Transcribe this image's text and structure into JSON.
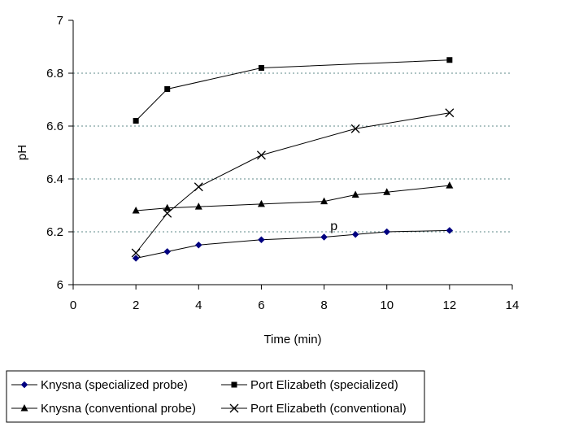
{
  "chart_data": {
    "type": "line",
    "xlabel": "Time (min)",
    "ylabel": "pH",
    "xlim": [
      0,
      14
    ],
    "ylim": [
      6,
      7
    ],
    "x_ticks": [
      0,
      2,
      4,
      6,
      8,
      10,
      12,
      14
    ],
    "y_ticks": [
      6,
      6.2,
      6.4,
      6.6,
      6.8,
      7
    ],
    "x_tick_labels": [
      "0",
      "2",
      "4",
      "6",
      "8",
      "10",
      "12",
      "14"
    ],
    "y_tick_labels": [
      "6",
      "6.2",
      "6.4",
      "6.6",
      "6.8",
      "7"
    ],
    "grid": "horizontal dotted",
    "legend_position": "bottom",
    "annotations": [
      {
        "text": "p",
        "x": 8.2,
        "y": 6.2
      }
    ],
    "series": [
      {
        "name": "Knysna (specialized probe)",
        "marker": "diamond",
        "color": "#000080",
        "x": [
          2,
          3,
          4,
          6,
          8,
          9,
          10,
          12
        ],
        "y": [
          6.1,
          6.125,
          6.15,
          6.17,
          6.18,
          6.19,
          6.2,
          6.205
        ]
      },
      {
        "name": "Port Elizabeth (specialized)",
        "marker": "square",
        "color": "#000000",
        "x": [
          2,
          3,
          6,
          12
        ],
        "y": [
          6.62,
          6.74,
          6.82,
          6.85
        ]
      },
      {
        "name": "Knysna (conventional probe)",
        "marker": "triangle",
        "color": "#000000",
        "x": [
          2,
          3,
          4,
          6,
          8,
          9,
          10,
          12
        ],
        "y": [
          6.28,
          6.29,
          6.295,
          6.305,
          6.315,
          6.34,
          6.35,
          6.375
        ]
      },
      {
        "name": "Port Elizabeth (conventional)",
        "marker": "x",
        "color": "#000000",
        "x": [
          2,
          3,
          4,
          6,
          9,
          12
        ],
        "y": [
          6.12,
          6.27,
          6.37,
          6.49,
          6.59,
          6.65
        ]
      }
    ]
  }
}
